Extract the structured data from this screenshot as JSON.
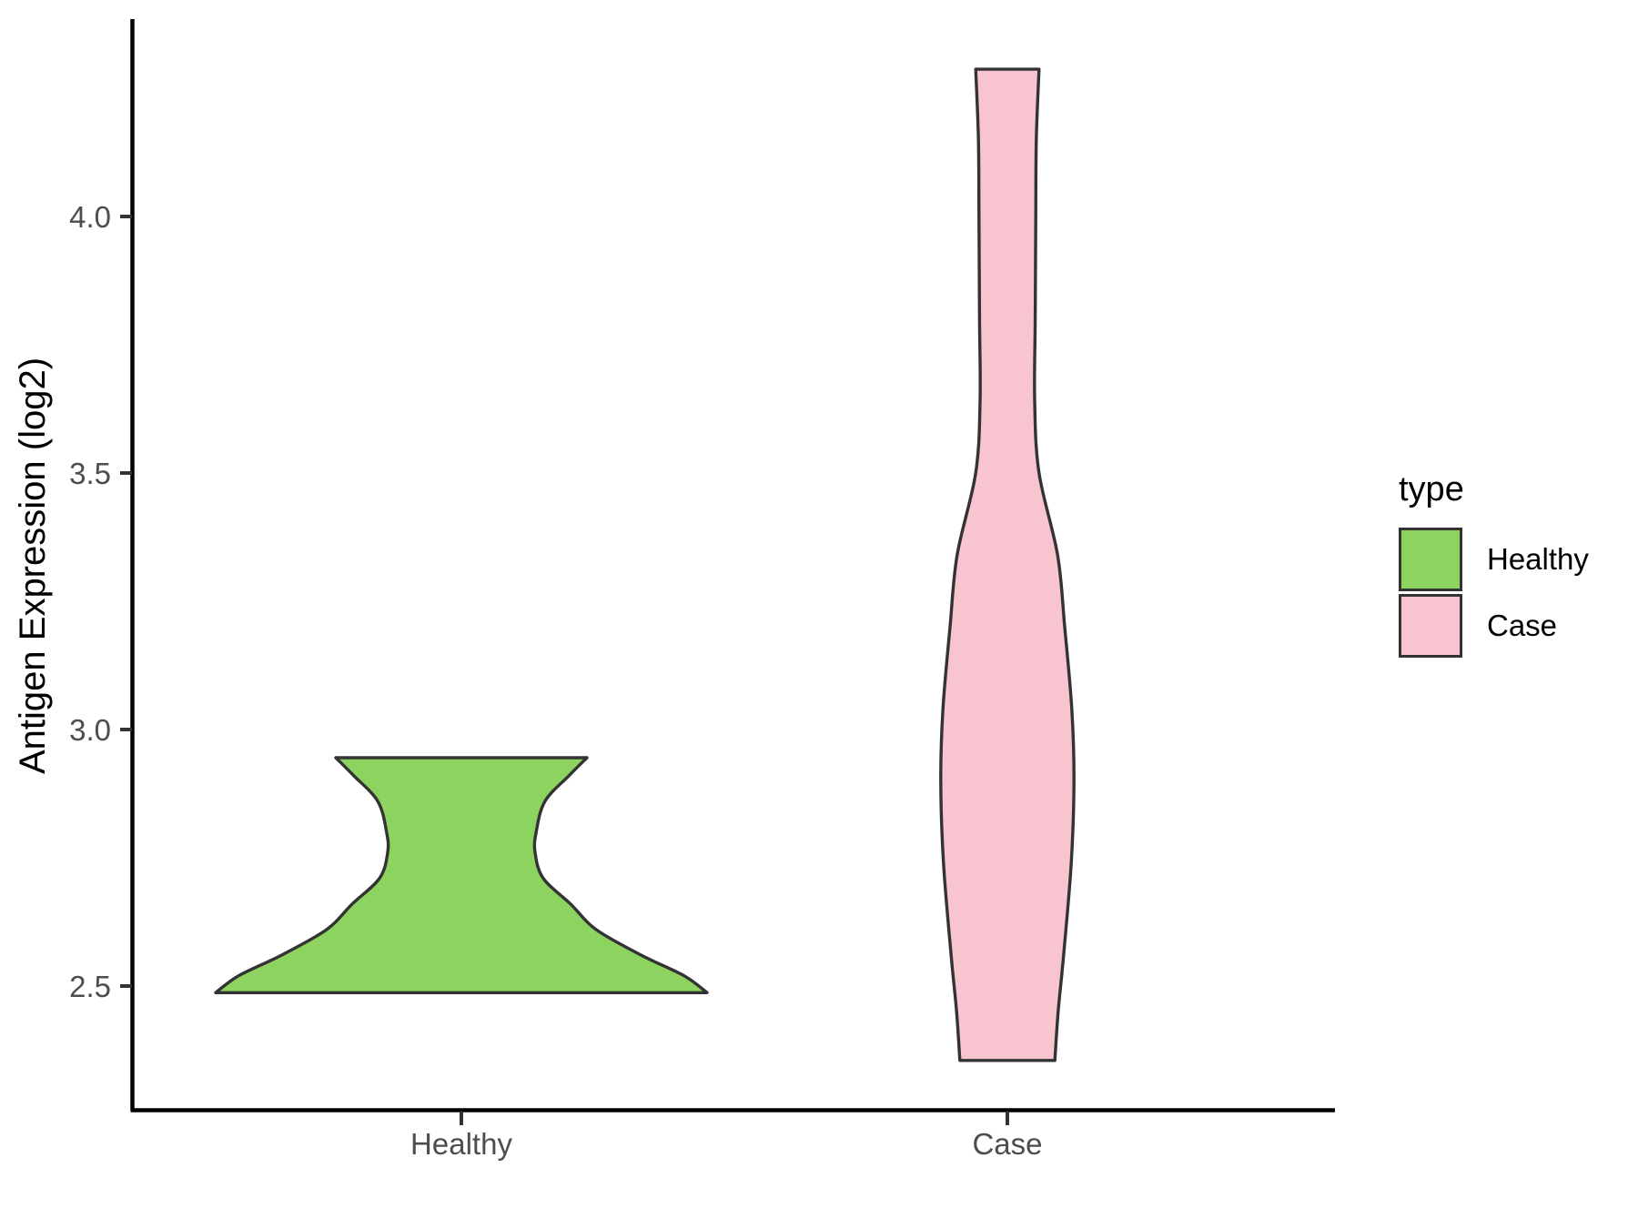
{
  "figure": {
    "background": "#ffffff",
    "axis_line_color": "#000000",
    "tick_color": "#333333",
    "tick_label_color": "#4d4d4d"
  },
  "chart_data": {
    "type": "violin",
    "title": "",
    "xlabel": "",
    "ylabel": "Antigen Expression (log2)",
    "categories": [
      "Healthy",
      "Case"
    ],
    "x_tick_labels": [
      "Healthy",
      "Case"
    ],
    "y_ticks": [
      {
        "label": "4.0",
        "value": 4.0
      },
      {
        "label": "3.5",
        "value": 3.5
      },
      {
        "label": "3.0",
        "value": 3.0
      },
      {
        "label": "2.5",
        "value": 2.5
      }
    ],
    "y_axis_range": [
      2.26,
      4.38
    ],
    "grid": "off",
    "legend_position": "right",
    "series": [
      {
        "name": "Healthy",
        "fill": "#8dd35f",
        "outline": "#333333",
        "value_min": 2.49,
        "value_max": 2.94,
        "widest_at": 2.49,
        "max_half_width_units": 0.45,
        "profile": [
          [
            2.945,
            0.23
          ],
          [
            2.91,
            0.197
          ],
          [
            2.86,
            0.153
          ],
          [
            2.8,
            0.137
          ],
          [
            2.76,
            0.135
          ],
          [
            2.71,
            0.15
          ],
          [
            2.66,
            0.2
          ],
          [
            2.61,
            0.247
          ],
          [
            2.56,
            0.33
          ],
          [
            2.52,
            0.408
          ],
          [
            2.487,
            0.45
          ]
        ]
      },
      {
        "name": "Case",
        "fill": "#f7c4cf",
        "outline": "#333333",
        "value_min": 2.35,
        "value_max": 4.29,
        "widest_at": 2.9,
        "max_half_width_units": 0.122,
        "profile": [
          [
            4.287,
            0.058
          ],
          [
            4.15,
            0.053
          ],
          [
            4.0,
            0.052
          ],
          [
            3.8,
            0.051
          ],
          [
            3.64,
            0.05
          ],
          [
            3.5,
            0.058
          ],
          [
            3.34,
            0.092
          ],
          [
            3.2,
            0.105
          ],
          [
            3.04,
            0.118
          ],
          [
            2.9,
            0.122
          ],
          [
            2.74,
            0.117
          ],
          [
            2.56,
            0.103
          ],
          [
            2.45,
            0.093
          ],
          [
            2.355,
            0.087
          ]
        ]
      }
    ]
  },
  "legend": {
    "title": "type",
    "items": [
      {
        "label": "Healthy",
        "color": "#8dd35f"
      },
      {
        "label": "Case",
        "color": "#f7c4cf"
      }
    ]
  }
}
